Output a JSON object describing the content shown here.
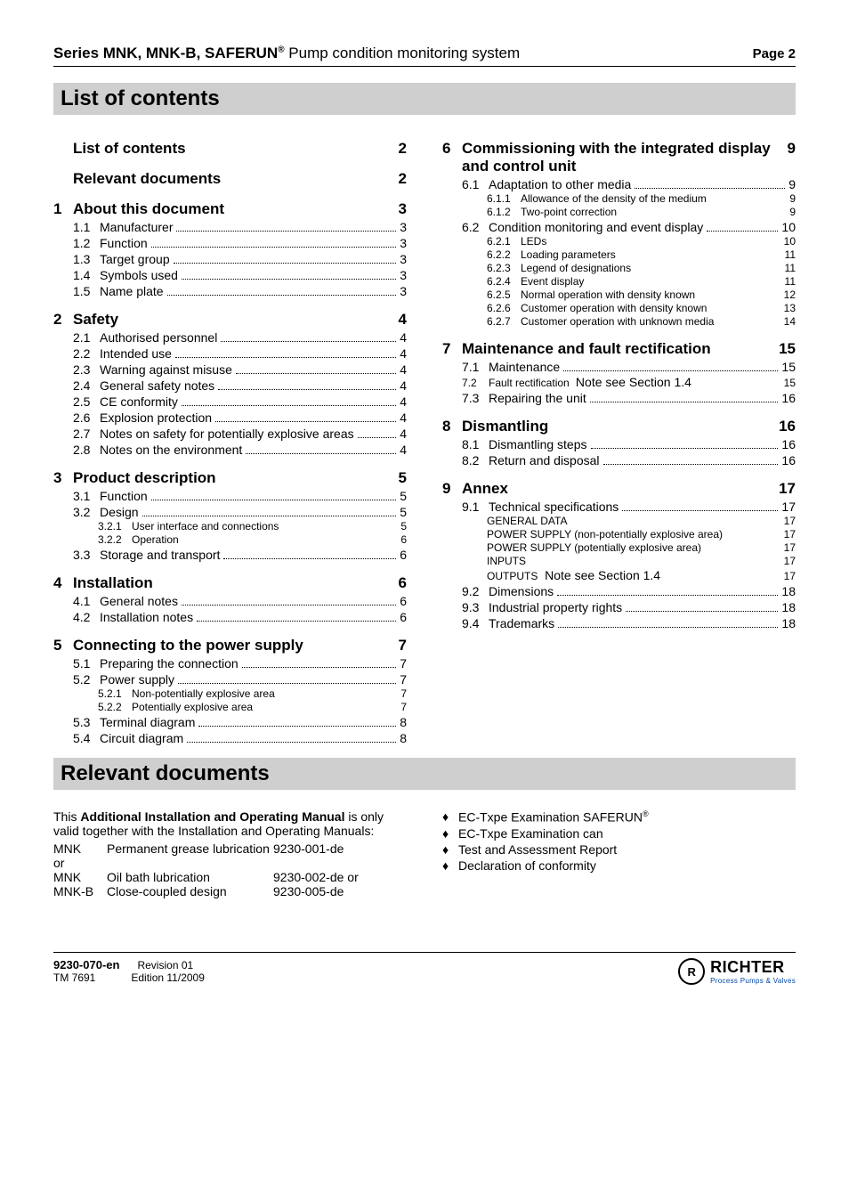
{
  "header": {
    "series": "Series MNK, MNK-B, ",
    "product": "SAFERUN",
    "reg": "®",
    "subtitle": " Pump condition monitoring system",
    "page_label": "Page 2"
  },
  "banners": {
    "toc": "List of contents",
    "relevant": "Relevant documents"
  },
  "toc_left": [
    {
      "level": 1,
      "num": "",
      "label": "List of contents",
      "page": "2",
      "leader": false
    },
    {
      "level": 1,
      "num": "",
      "label": "Relevant documents",
      "page": "2",
      "leader": false
    },
    {
      "level": 1,
      "num": "1",
      "label": "About this document",
      "page": "3",
      "leader": false
    },
    {
      "level": 2,
      "num": "1.1",
      "label": "Manufacturer",
      "page": "3",
      "leader": true
    },
    {
      "level": 2,
      "num": "1.2",
      "label": "Function",
      "page": "3",
      "leader": true
    },
    {
      "level": 2,
      "num": "1.3",
      "label": "Target group",
      "page": "3",
      "leader": true
    },
    {
      "level": 2,
      "num": "1.4",
      "label": "Symbols used",
      "page": "3",
      "leader": true
    },
    {
      "level": 2,
      "num": "1.5",
      "label": "Name plate",
      "page": "3",
      "leader": true
    },
    {
      "level": 1,
      "num": "2",
      "label": "Safety",
      "page": "4",
      "leader": false
    },
    {
      "level": 2,
      "num": "2.1",
      "label": "Authorised personnel",
      "page": "4",
      "leader": true
    },
    {
      "level": 2,
      "num": "2.2",
      "label": "Intended use",
      "page": "4",
      "leader": true
    },
    {
      "level": 2,
      "num": "2.3",
      "label": "Warning against misuse",
      "page": "4",
      "leader": true
    },
    {
      "level": 2,
      "num": "2.4",
      "label": "General safety notes",
      "page": "4",
      "leader": true
    },
    {
      "level": 2,
      "num": "2.5",
      "label": "CE conformity",
      "page": "4",
      "leader": true
    },
    {
      "level": 2,
      "num": "2.6",
      "label": "Explosion protection",
      "page": "4",
      "leader": true
    },
    {
      "level": 2,
      "num": "2.7",
      "label": "Notes on safety for potentially explosive areas",
      "page": "4",
      "leader": true
    },
    {
      "level": 2,
      "num": "2.8",
      "label": "Notes on the environment",
      "page": "4",
      "leader": true
    },
    {
      "level": 1,
      "num": "3",
      "label": "Product description",
      "page": "5",
      "leader": false
    },
    {
      "level": 2,
      "num": "3.1",
      "label": "Function",
      "page": "5",
      "leader": true
    },
    {
      "level": 2,
      "num": "3.2",
      "label": "Design",
      "page": "5",
      "leader": true
    },
    {
      "level": 3,
      "num": "3.2.1",
      "label": "User interface and connections",
      "page": "5",
      "leader": false
    },
    {
      "level": 3,
      "num": "3.2.2",
      "label": "Operation",
      "page": "6",
      "leader": false
    },
    {
      "level": 2,
      "num": "3.3",
      "label": "Storage and transport",
      "page": "6",
      "leader": true
    },
    {
      "level": 1,
      "num": "4",
      "label": "Installation",
      "page": "6",
      "leader": false
    },
    {
      "level": 2,
      "num": "4.1",
      "label": "General notes",
      "page": "6",
      "leader": true
    },
    {
      "level": 2,
      "num": "4.2",
      "label": "Installation notes",
      "page": "6",
      "leader": true
    },
    {
      "level": 1,
      "num": "5",
      "label": "Connecting to the power supply",
      "page": "7",
      "leader": false
    },
    {
      "level": 2,
      "num": "5.1",
      "label": "Preparing the connection",
      "page": "7",
      "leader": true
    },
    {
      "level": 2,
      "num": "5.2",
      "label": "Power supply",
      "page": "7",
      "leader": true
    },
    {
      "level": 3,
      "num": "5.2.1",
      "label": "Non-potentially explosive area",
      "page": "7",
      "leader": false
    },
    {
      "level": 3,
      "num": "5.2.2",
      "label": "Potentially explosive area",
      "page": "7",
      "leader": false
    },
    {
      "level": 2,
      "num": "5.3",
      "label": "Terminal diagram",
      "page": "8",
      "leader": true
    },
    {
      "level": 2,
      "num": "5.4",
      "label": "Circuit diagram",
      "page": "8",
      "leader": true
    }
  ],
  "toc_right": [
    {
      "level": 1,
      "num": "6",
      "label": "Commissioning with the integrated display and control unit",
      "page": "9",
      "leader": false
    },
    {
      "level": 2,
      "num": "6.1",
      "label": "Adaptation to other media",
      "page": "9",
      "leader": true
    },
    {
      "level": 3,
      "num": "6.1.1",
      "label": "Allowance of the density of the medium",
      "page": "9",
      "leader": false
    },
    {
      "level": 3,
      "num": "6.1.2",
      "label": "Two-point correction",
      "page": "9",
      "leader": false
    },
    {
      "level": 2,
      "num": "6.2",
      "label": "Condition monitoring and event display",
      "page": "10",
      "leader": true
    },
    {
      "level": 3,
      "num": "6.2.1",
      "label": "LEDs",
      "page": "10",
      "leader": false
    },
    {
      "level": 3,
      "num": "6.2.2",
      "label": "Loading parameters",
      "page": "11",
      "leader": false
    },
    {
      "level": 3,
      "num": "6.2.3",
      "label": "Legend of designations",
      "page": "11",
      "leader": false
    },
    {
      "level": 3,
      "num": "6.2.4",
      "label": "Event display",
      "page": "11",
      "leader": false
    },
    {
      "level": 3,
      "num": "6.2.5",
      "label": "Normal operation with density known",
      "page": "12",
      "leader": false
    },
    {
      "level": 3,
      "num": "6.2.6",
      "label": "Customer operation with density known",
      "page": "13",
      "leader": false
    },
    {
      "level": 3,
      "num": "6.2.7",
      "label": "Customer operation with unknown media",
      "page": "14",
      "leader": false
    },
    {
      "level": 1,
      "num": "7",
      "label": "Maintenance and fault rectification",
      "page": "15",
      "leader": false
    },
    {
      "level": 2,
      "num": "7.1",
      "label": "Maintenance",
      "page": "15",
      "leader": true
    },
    {
      "level": 4,
      "num": "7.2",
      "label_small": "Fault rectification ",
      "label_big": "Note see Section 1.4",
      "page": "15"
    },
    {
      "level": 2,
      "num": "7.3",
      "label": "Repairing the unit",
      "page": "16",
      "leader": true
    },
    {
      "level": 1,
      "num": "8",
      "label": "Dismantling",
      "page": "16",
      "leader": false
    },
    {
      "level": 2,
      "num": "8.1",
      "label": "Dismantling steps",
      "page": "16",
      "leader": true
    },
    {
      "level": 2,
      "num": "8.2",
      "label": "Return and disposal",
      "page": "16",
      "leader": true
    },
    {
      "level": 1,
      "num": "9",
      "label": "Annex",
      "page": "17",
      "leader": false
    },
    {
      "level": 2,
      "num": "9.1",
      "label": "Technical specifications",
      "page": "17",
      "leader": true
    },
    {
      "level": 3,
      "num": "",
      "label": "GENERAL DATA",
      "page": "17",
      "leader": false
    },
    {
      "level": 3,
      "num": "",
      "label": "POWER SUPPLY (non-potentially explosive area)",
      "page": "17",
      "leader": false
    },
    {
      "level": 3,
      "num": "",
      "label": "POWER SUPPLY (potentially explosive area)",
      "page": "17",
      "leader": false
    },
    {
      "level": 3,
      "num": "",
      "label": "INPUTS",
      "page": "17",
      "leader": false
    },
    {
      "level": 4,
      "num": "",
      "label_small": "OUTPUTS",
      "label_big": "Note see Section 1.4",
      "page": "17",
      "indent": true
    },
    {
      "level": 2,
      "num": "9.2",
      "label": "Dimensions",
      "page": "18",
      "leader": true
    },
    {
      "level": 2,
      "num": "9.3",
      "label": "Industrial property rights",
      "page": "18",
      "leader": true
    },
    {
      "level": 2,
      "num": "9.4",
      "label": "Trademarks",
      "page": "18",
      "leader": true
    }
  ],
  "relevant": {
    "intro_this": "This ",
    "intro_bold": "Additional Installation and Operating Manual",
    "intro_rest": " is only valid together with the Installation and Operating Manuals:",
    "manuals": [
      {
        "c1": "MNK",
        "c2": "Permanent grease lubrication",
        "c3": "9230-001-de"
      },
      {
        "c1": "or",
        "c2": "",
        "c3": ""
      },
      {
        "c1": "MNK",
        "c2": "Oil bath lubrication",
        "c3": "9230-002-de   or"
      },
      {
        "c1": "MNK-B",
        "c2": "Close-coupled design",
        "c3": "9230-005-de"
      }
    ],
    "bullets": [
      {
        "text": "EC-Txpe Examination SAFERUN",
        "sup": "®"
      },
      {
        "text": "EC-Txpe Examination can",
        "sup": ""
      },
      {
        "text": "Test and Assessment Report",
        "sup": ""
      },
      {
        "text": "Declaration of conformity",
        "sup": ""
      }
    ]
  },
  "footer": {
    "doc_num": "9230-070-en",
    "tm": "TM 7691",
    "rev": "Revision 01",
    "edition": "Edition 11/2009",
    "logo_mark": "R",
    "logo_text": "RICHTER",
    "logo_sub": "Process Pumps & Valves"
  }
}
